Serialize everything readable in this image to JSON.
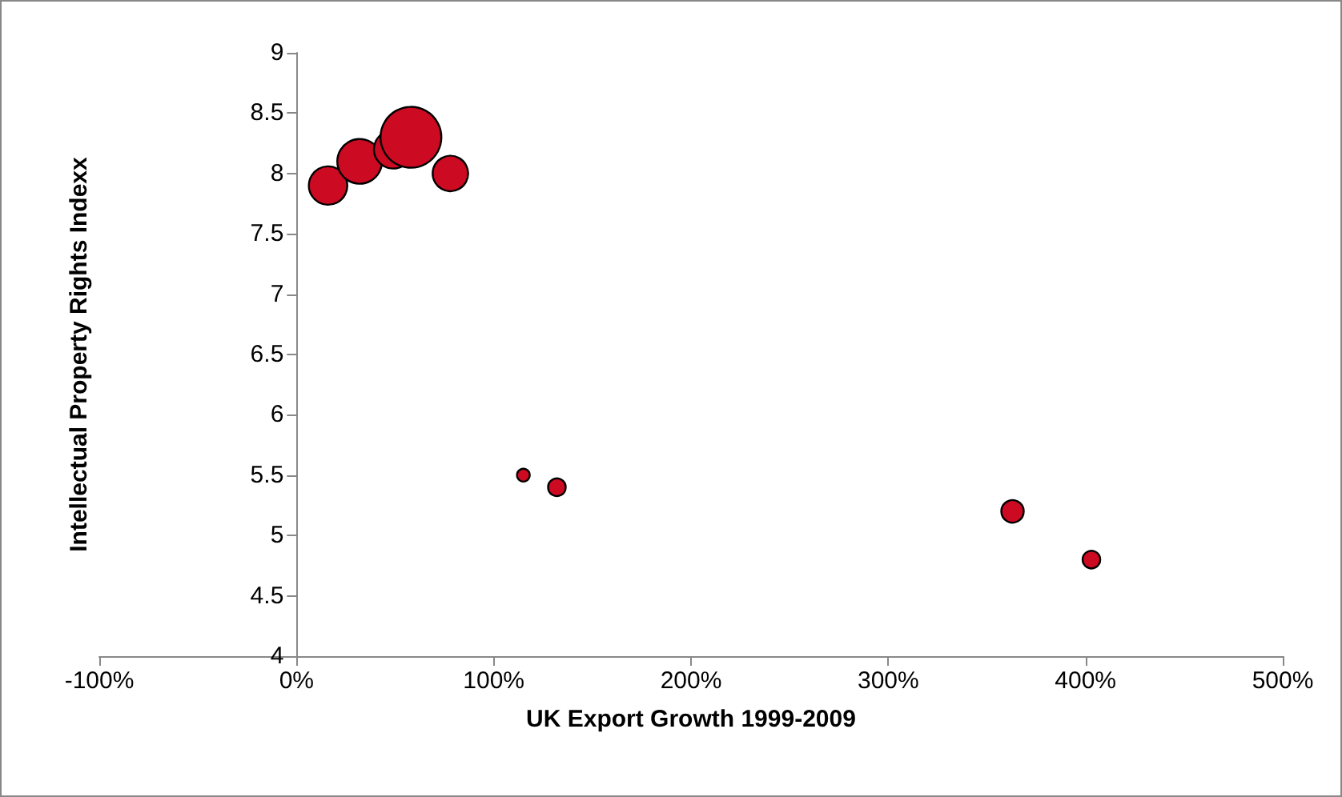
{
  "chart_data": {
    "type": "bubble",
    "xlabel": "UK Export Growth 1999-2009",
    "ylabel": "Intellectual Property Rights Indexx",
    "x": [
      16,
      32,
      49,
      58,
      78,
      115,
      132,
      363,
      403
    ],
    "values": [
      7.9,
      8.1,
      8.2,
      8.3,
      8.0,
      5.5,
      5.4,
      5.2,
      4.8
    ],
    "sizes": [
      0.4,
      0.54,
      0.4,
      1,
      0.34,
      0.044,
      0.084,
      0.136,
      0.084
    ],
    "color": "#cc0a22",
    "marker": "circle",
    "xlim": [
      -100,
      500
    ],
    "xticks": [
      {
        "value": -100,
        "label": "-100%"
      },
      {
        "value": 0,
        "label": "0%"
      },
      {
        "value": 100,
        "label": "100%"
      },
      {
        "value": 200,
        "label": "200%"
      },
      {
        "value": 300,
        "label": "300%"
      },
      {
        "value": 400,
        "label": "400%"
      },
      {
        "value": 500,
        "label": "500%"
      }
    ],
    "ylim": [
      4,
      9
    ],
    "yticks": [
      4,
      4.5,
      5,
      5.5,
      6,
      6.5,
      7,
      7.5,
      8,
      8.5,
      9
    ]
  }
}
